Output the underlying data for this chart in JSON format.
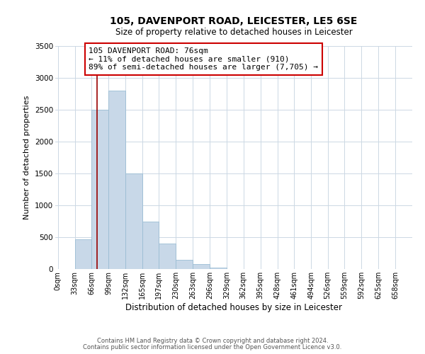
{
  "title": "105, DAVENPORT ROAD, LEICESTER, LE5 6SE",
  "subtitle": "Size of property relative to detached houses in Leicester",
  "xlabel": "Distribution of detached houses by size in Leicester",
  "ylabel": "Number of detached properties",
  "bar_color": "#c8d8e8",
  "bar_edge_color": "#9bbdd4",
  "bar_left_edges": [
    0,
    33,
    66,
    99,
    132,
    165,
    197,
    230,
    263,
    296,
    329,
    362,
    395,
    428,
    461,
    494,
    526,
    559,
    592,
    625
  ],
  "bar_widths": [
    33,
    33,
    33,
    33,
    33,
    32,
    33,
    33,
    33,
    33,
    33,
    33,
    33,
    33,
    33,
    32,
    33,
    33,
    33,
    33
  ],
  "bar_heights": [
    0,
    470,
    2500,
    2800,
    1500,
    750,
    400,
    150,
    75,
    25,
    0,
    0,
    0,
    0,
    0,
    0,
    0,
    0,
    0,
    0
  ],
  "tick_labels": [
    "0sqm",
    "33sqm",
    "66sqm",
    "99sqm",
    "132sqm",
    "165sqm",
    "197sqm",
    "230sqm",
    "263sqm",
    "296sqm",
    "329sqm",
    "362sqm",
    "395sqm",
    "428sqm",
    "461sqm",
    "494sqm",
    "526sqm",
    "559sqm",
    "592sqm",
    "625sqm",
    "658sqm"
  ],
  "tick_positions": [
    0,
    33,
    66,
    99,
    132,
    165,
    197,
    230,
    263,
    296,
    329,
    362,
    395,
    428,
    461,
    494,
    526,
    559,
    592,
    625,
    658
  ],
  "ylim": [
    0,
    3500
  ],
  "xlim": [
    -5,
    691
  ],
  "yticks": [
    0,
    500,
    1000,
    1500,
    2000,
    2500,
    3000,
    3500
  ],
  "vline_x": 76,
  "vline_color": "#990000",
  "annotation_text": "105 DAVENPORT ROAD: 76sqm\n← 11% of detached houses are smaller (910)\n89% of semi-detached houses are larger (7,705) →",
  "annotation_box_color": "#ffffff",
  "annotation_box_edge": "#cc0000",
  "footer_line1": "Contains HM Land Registry data © Crown copyright and database right 2024.",
  "footer_line2": "Contains public sector information licensed under the Open Government Licence v3.0.",
  "background_color": "#ffffff",
  "grid_color": "#ccd8e4",
  "title_fontsize": 10,
  "subtitle_fontsize": 8.5,
  "ylabel_fontsize": 8,
  "xlabel_fontsize": 8.5,
  "tick_fontsize": 7,
  "ytick_fontsize": 7.5,
  "annot_fontsize": 8,
  "footer_fontsize": 6
}
